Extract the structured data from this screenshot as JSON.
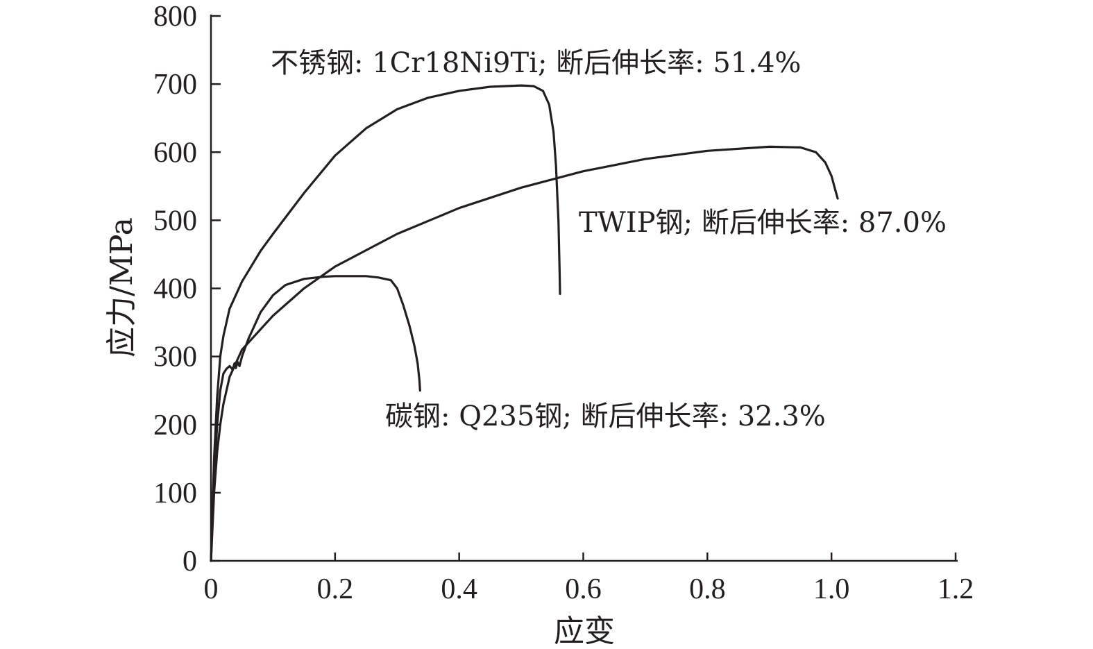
{
  "chart_data": {
    "type": "line",
    "xlabel": "应变",
    "ylabel": "应力/MPa",
    "xlim": [
      0,
      1.2
    ],
    "ylim": [
      0,
      800
    ],
    "xticks": [
      "0",
      "0.2",
      "0.4",
      "0.6",
      "0.8",
      "1.0",
      "1.2"
    ],
    "yticks": [
      "0",
      "100",
      "200",
      "300",
      "400",
      "500",
      "600",
      "700",
      "800"
    ],
    "grid": false,
    "legend": "none",
    "annotations": [
      {
        "text": "不锈钢: 1Cr18Ni9Ti; 断后伸长率: 51.4%",
        "series": 0
      },
      {
        "text": "TWIP钢; 断后伸长率: 87.0%",
        "series": 1
      },
      {
        "text": "碳钢: Q235钢; 断后伸长率: 32.3%",
        "series": 2
      }
    ],
    "series": [
      {
        "x": [
          0,
          0.005,
          0.01,
          0.015,
          0.02,
          0.03,
          0.05,
          0.08,
          0.1,
          0.15,
          0.2,
          0.25,
          0.3,
          0.35,
          0.4,
          0.45,
          0.5,
          0.52,
          0.535,
          0.545,
          0.552,
          0.556,
          0.558,
          0.56,
          0.561,
          0.562,
          0.5625
        ],
        "y": [
          0,
          150,
          240,
          300,
          330,
          370,
          410,
          455,
          480,
          540,
          595,
          635,
          663,
          680,
          690,
          696,
          698,
          697,
          690,
          670,
          630,
          580,
          540,
          500,
          460,
          420,
          392
        ]
      },
      {
        "x": [
          0,
          0.005,
          0.01,
          0.015,
          0.02,
          0.03,
          0.05,
          0.1,
          0.15,
          0.2,
          0.3,
          0.4,
          0.5,
          0.6,
          0.7,
          0.8,
          0.9,
          0.95,
          0.975,
          0.99,
          1.0,
          1.006,
          1.01
        ],
        "y": [
          0,
          100,
          160,
          200,
          230,
          270,
          310,
          360,
          400,
          432,
          480,
          518,
          548,
          572,
          590,
          602,
          608,
          607,
          600,
          585,
          565,
          545,
          532
        ]
      },
      {
        "x": [
          0,
          0.005,
          0.01,
          0.015,
          0.02,
          0.025,
          0.03,
          0.035,
          0.038,
          0.04,
          0.043,
          0.046,
          0.05,
          0.06,
          0.08,
          0.1,
          0.12,
          0.15,
          0.18,
          0.2,
          0.25,
          0.27,
          0.29,
          0.3,
          0.31,
          0.32,
          0.328,
          0.333,
          0.336,
          0.337
        ],
        "y": [
          0,
          120,
          200,
          250,
          275,
          282,
          286,
          281,
          290,
          283,
          292,
          286,
          300,
          325,
          365,
          390,
          405,
          414,
          417,
          418,
          418,
          416,
          412,
          400,
          375,
          345,
          315,
          290,
          265,
          250
        ]
      }
    ]
  }
}
